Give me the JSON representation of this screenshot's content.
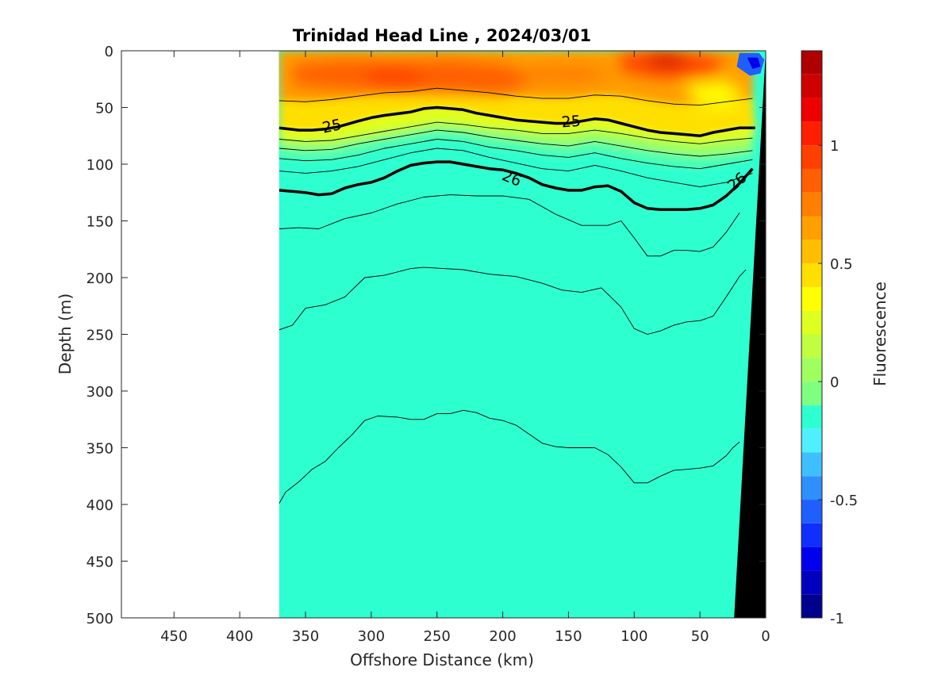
{
  "chart_data": {
    "type": "contour-section",
    "title": "Trinidad Head Line , 2024/03/01",
    "xlabel": "Offshore Distance (km)",
    "ylabel": "Depth (m)",
    "xlim": [
      490,
      0
    ],
    "ylim": [
      500,
      0
    ],
    "x_reversed": true,
    "y_reversed": true,
    "x_ticks": [
      450,
      400,
      350,
      300,
      250,
      200,
      150,
      100,
      50,
      0
    ],
    "y_ticks": [
      0,
      50,
      100,
      150,
      200,
      250,
      300,
      350,
      400,
      450,
      500
    ],
    "colorbar": {
      "label": "Fluorescence",
      "clim": [
        -1,
        1.4
      ],
      "ticks": [
        1,
        0.5,
        0,
        -0.5,
        -1
      ],
      "tick_labels": [
        "1",
        "0.5",
        "0",
        "-0.5",
        "-1"
      ],
      "levels": [
        -1,
        -0.9,
        -0.8,
        -0.7,
        -0.6,
        -0.5,
        -0.4,
        -0.3,
        -0.2,
        -0.1,
        0,
        0.1,
        0.2,
        0.3,
        0.4,
        0.5,
        0.6,
        0.7,
        0.8,
        0.9,
        1,
        1.1,
        1.2,
        1.3,
        1.4
      ],
      "colors": [
        "#00008f",
        "#0000bf",
        "#0000ef",
        "#0f2fff",
        "#1f5fff",
        "#2f8fff",
        "#3fbfff",
        "#4fefff",
        "#2effd0",
        "#7fff7f",
        "#9fff5f",
        "#bfff3f",
        "#dfff1f",
        "#ffff00",
        "#ffdf00",
        "#ffbf00",
        "#ff9f00",
        "#ff7f00",
        "#ff5f00",
        "#ff3f00",
        "#ff1f00",
        "#ef0000",
        "#cf0000",
        "#af0000"
      ]
    },
    "data_x_extent": [
      370,
      0
    ],
    "fill_regions": [
      {
        "name": "background",
        "value": 0.05,
        "color": "#2effd0"
      },
      {
        "name": "surface-layer",
        "value": 0.8,
        "color": "#ff9f00"
      },
      {
        "name": "subsurface-maximum",
        "value": 1.0,
        "color": "#ff5f00"
      },
      {
        "name": "nearshore-surface",
        "value": 1.3,
        "color": "#cf0000"
      },
      {
        "name": "coastal-minimum",
        "value": -0.4,
        "color": "#1f5fff"
      }
    ],
    "bathymetry": {
      "color": "#000000",
      "x": [
        24,
        0,
        0
      ],
      "depth": [
        500,
        500,
        30
      ]
    },
    "isopycnals": [
      {
        "level": 25,
        "bold": true,
        "label": "25",
        "x": [
          370,
          355,
          345,
          335,
          325,
          310,
          300,
          290,
          270,
          260,
          250,
          240,
          230,
          220,
          210,
          200,
          190,
          180,
          170,
          160,
          150,
          140,
          130,
          120,
          110,
          100,
          90,
          80,
          70,
          60,
          50,
          40,
          30,
          20,
          8
        ],
        "depth": [
          68,
          70,
          70,
          69,
          67,
          62,
          59,
          57,
          54,
          51,
          50,
          51,
          52,
          55,
          57,
          59,
          61,
          62,
          63,
          64,
          64,
          62,
          60,
          61,
          64,
          67,
          70,
          72,
          73,
          74,
          75,
          72,
          70,
          68,
          68
        ]
      },
      {
        "level": 26,
        "bold": true,
        "label": "26",
        "x": [
          370,
          350,
          340,
          330,
          320,
          310,
          300,
          290,
          280,
          270,
          260,
          250,
          240,
          230,
          220,
          210,
          200,
          190,
          180,
          170,
          160,
          150,
          140,
          130,
          120,
          110,
          100,
          90,
          80,
          70,
          60,
          50,
          40,
          30,
          20,
          10
        ],
        "depth": [
          123,
          125,
          127,
          126,
          121,
          118,
          116,
          112,
          106,
          101,
          99,
          98,
          98,
          100,
          102,
          104,
          105,
          108,
          112,
          118,
          121,
          123,
          123,
          120,
          119,
          124,
          134,
          139,
          140,
          140,
          140,
          139,
          136,
          128,
          117,
          104
        ]
      },
      {
        "level": 24.8,
        "bold": false,
        "x": [
          370,
          350,
          330,
          310,
          290,
          270,
          250,
          230,
          210,
          190,
          170,
          150,
          130,
          110,
          90,
          70,
          50,
          30,
          10
        ],
        "depth": [
          44,
          45,
          43,
          40,
          37,
          36,
          33,
          35,
          37,
          40,
          42,
          42,
          39,
          40,
          44,
          47,
          48,
          45,
          42
        ]
      },
      {
        "level": 25.2,
        "bold": false,
        "x": [
          370,
          350,
          330,
          310,
          290,
          270,
          250,
          230,
          210,
          190,
          170,
          150,
          130,
          110,
          90,
          70,
          50,
          30,
          10
        ],
        "depth": [
          78,
          80,
          79,
          75,
          71,
          67,
          63,
          65,
          68,
          70,
          73,
          73,
          70,
          73,
          77,
          80,
          82,
          79,
          77
        ]
      },
      {
        "level": 25.4,
        "bold": false,
        "x": [
          370,
          350,
          330,
          310,
          290,
          270,
          250,
          230,
          210,
          190,
          170,
          150,
          130,
          110,
          90,
          70,
          50,
          30,
          10
        ],
        "depth": [
          86,
          88,
          87,
          82,
          78,
          74,
          70,
          72,
          76,
          79,
          82,
          84,
          80,
          84,
          88,
          91,
          93,
          91,
          88
        ]
      },
      {
        "level": 25.6,
        "bold": false,
        "x": [
          370,
          350,
          330,
          310,
          290,
          270,
          250,
          230,
          210,
          190,
          170,
          150,
          130,
          110,
          90,
          70,
          50,
          30,
          10
        ],
        "depth": [
          95,
          97,
          96,
          92,
          86,
          82,
          78,
          80,
          85,
          88,
          92,
          94,
          90,
          95,
          99,
          102,
          104,
          100,
          96
        ]
      },
      {
        "level": 25.8,
        "bold": false,
        "x": [
          370,
          350,
          330,
          310,
          290,
          270,
          250,
          230,
          210,
          190,
          170,
          150,
          130,
          110,
          90,
          70,
          50,
          30,
          10
        ],
        "depth": [
          106,
          108,
          106,
          102,
          96,
          90,
          86,
          88,
          94,
          99,
          104,
          106,
          101,
          106,
          112,
          116,
          120,
          116,
          108
        ]
      },
      {
        "level": 26.2,
        "bold": false,
        "x": [
          370,
          355,
          340,
          320,
          300,
          280,
          260,
          240,
          220,
          200,
          180,
          160,
          140,
          120,
          110,
          100,
          90,
          80,
          70,
          60,
          50,
          40,
          30,
          20
        ],
        "depth": [
          157,
          156,
          157,
          148,
          143,
          135,
          129,
          127,
          128,
          128,
          131,
          144,
          154,
          154,
          150,
          165,
          181,
          181,
          176,
          176,
          177,
          173,
          160,
          143
        ]
      },
      {
        "level": 26.4,
        "bold": false,
        "x": [
          370,
          360,
          350,
          335,
          320,
          305,
          290,
          270,
          260,
          245,
          230,
          210,
          190,
          170,
          155,
          140,
          125,
          110,
          100,
          90,
          80,
          70,
          60,
          50,
          40,
          30,
          20,
          15
        ],
        "depth": [
          246,
          242,
          227,
          224,
          217,
          200,
          198,
          192,
          191,
          192,
          193,
          197,
          199,
          205,
          211,
          213,
          209,
          226,
          245,
          250,
          247,
          242,
          239,
          238,
          234,
          217,
          199,
          193
        ]
      },
      {
        "level": 26.6,
        "bold": false,
        "x": [
          370,
          365,
          355,
          345,
          335,
          325,
          315,
          305,
          295,
          280,
          270,
          260,
          250,
          240,
          230,
          220,
          210,
          200,
          190,
          180,
          170,
          160,
          150,
          140,
          130,
          120,
          110,
          100,
          90,
          80,
          70,
          60,
          50,
          40,
          30,
          25,
          20
        ],
        "depth": [
          399,
          389,
          380,
          369,
          362,
          350,
          339,
          326,
          322,
          323,
          325,
          325,
          320,
          320,
          317,
          319,
          324,
          326,
          330,
          338,
          346,
          349,
          350,
          350,
          350,
          356,
          367,
          381,
          381,
          375,
          370,
          369,
          368,
          366,
          357,
          350,
          345
        ]
      }
    ]
  }
}
